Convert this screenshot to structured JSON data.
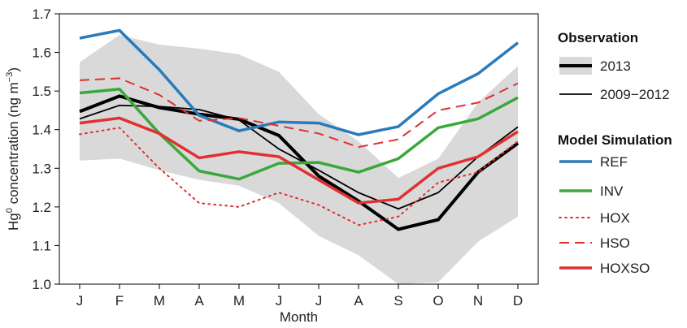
{
  "chart_data": {
    "type": "line",
    "xlabel": "Month",
    "ylabel": {
      "prefix": "Hg",
      "sup": "0",
      "mid": " concentration (ng m",
      "sup2": "−3",
      "suffix": ")"
    },
    "categories": [
      "J",
      "F",
      "M",
      "A",
      "M",
      "J",
      "J",
      "A",
      "S",
      "O",
      "N",
      "D"
    ],
    "ylim": [
      1.0,
      1.7
    ],
    "yticks": [
      "1.0",
      "1.1",
      "1.2",
      "1.3",
      "1.4",
      "1.5",
      "1.6",
      "1.7"
    ],
    "band": {
      "upper": [
        1.575,
        1.645,
        1.62,
        1.61,
        1.595,
        1.55,
        1.44,
        1.37,
        1.275,
        1.325,
        1.47,
        1.565
      ],
      "lower": [
        1.32,
        1.325,
        1.295,
        1.27,
        1.255,
        1.21,
        1.125,
        1.075,
        1.0,
        1.005,
        1.11,
        1.175
      ],
      "color": "#d9d9d9"
    },
    "series": [
      {
        "name": "2013",
        "values": [
          1.447,
          1.487,
          1.457,
          1.44,
          1.427,
          1.385,
          1.28,
          1.215,
          1.142,
          1.167,
          1.29,
          1.365
        ],
        "color": "#000000",
        "style": "solid-thick"
      },
      {
        "name": "2009−2012",
        "values": [
          1.428,
          1.463,
          1.46,
          1.452,
          1.425,
          1.35,
          1.295,
          1.237,
          1.195,
          1.237,
          1.33,
          1.407
        ],
        "color": "#000000",
        "style": "solid-thin"
      },
      {
        "name": "REF",
        "values": [
          1.637,
          1.657,
          1.555,
          1.437,
          1.397,
          1.42,
          1.417,
          1.387,
          1.408,
          1.493,
          1.545,
          1.625
        ],
        "color": "#2b7bba",
        "style": "solid"
      },
      {
        "name": "INV",
        "values": [
          1.495,
          1.505,
          1.39,
          1.293,
          1.272,
          1.313,
          1.315,
          1.29,
          1.325,
          1.405,
          1.428,
          1.483
        ],
        "color": "#3aa83a",
        "style": "solid"
      },
      {
        "name": "HOX",
        "values": [
          1.388,
          1.405,
          1.3,
          1.21,
          1.2,
          1.237,
          1.205,
          1.153,
          1.175,
          1.263,
          1.29,
          1.37
        ],
        "color": "#e03030",
        "style": "dotted"
      },
      {
        "name": "HSO",
        "values": [
          1.528,
          1.533,
          1.49,
          1.423,
          1.43,
          1.41,
          1.39,
          1.355,
          1.375,
          1.45,
          1.47,
          1.52
        ],
        "color": "#e03030",
        "style": "dashed"
      },
      {
        "name": "HOXSO",
        "values": [
          1.417,
          1.43,
          1.39,
          1.327,
          1.343,
          1.33,
          1.27,
          1.21,
          1.22,
          1.3,
          1.33,
          1.395
        ],
        "color": "#e03030",
        "style": "solid"
      }
    ],
    "grid": false,
    "legend": {
      "placement": "right",
      "observation_heading": "Observation",
      "model_heading": "Model Simulation"
    }
  }
}
